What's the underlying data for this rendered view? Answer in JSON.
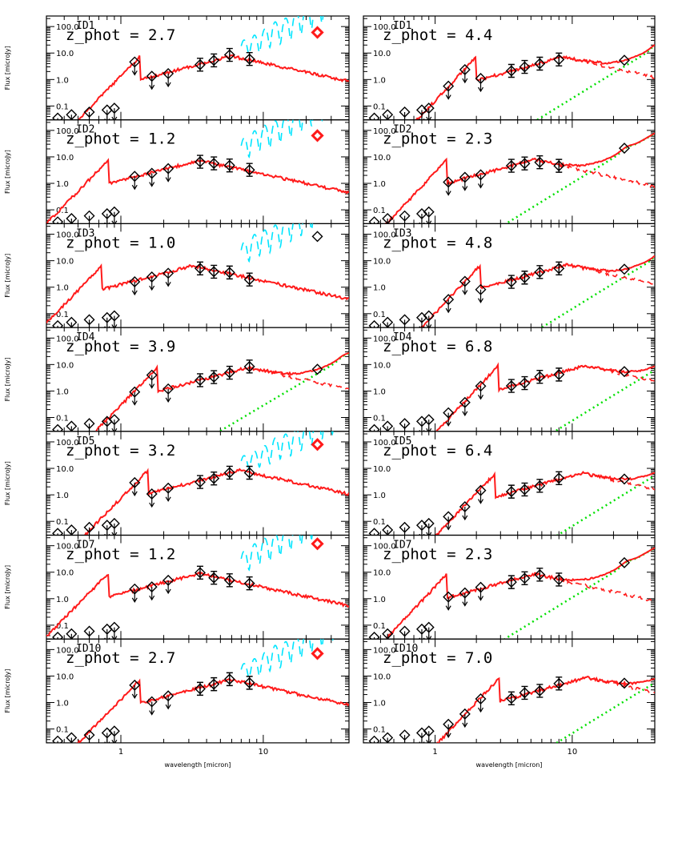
{
  "chart_data": {
    "type": "scatter",
    "layout": {
      "rows": 7,
      "cols": 2
    },
    "xlabel": "wavelength [micron]",
    "ylabel": "Flux [microJy]",
    "x_scale": "log",
    "y_scale": "log",
    "xlim": [
      0.3,
      40
    ],
    "ylim": [
      0.03,
      250
    ],
    "x_ticks": [
      {
        "value": 1,
        "label": "1"
      },
      {
        "value": 10,
        "label": "10"
      }
    ],
    "y_ticks": [
      {
        "value": 100,
        "label": "100.0"
      },
      {
        "value": 10,
        "label": "10.0"
      },
      {
        "value": 1,
        "label": "1.0"
      },
      {
        "value": 0.1,
        "label": "0.1"
      }
    ],
    "colors": {
      "model": "#ff1a1a",
      "pah": "#00e000",
      "alt_model": "#00e5ff",
      "points": "#000000",
      "highlight": "#ff1a1a"
    },
    "panels": [
      {
        "id": "ID1",
        "ztext": "z_phot = 2.7",
        "z": 2.7,
        "col": 0,
        "highlight": 24,
        "cyan": true,
        "green": false
      },
      {
        "id": "ID1",
        "ztext": "z_phot = 4.4",
        "z": 4.4,
        "col": 1,
        "highlight": null,
        "cyan": false,
        "green": true
      },
      {
        "id": "ID2",
        "ztext": "z_phot = 1.2",
        "z": 1.2,
        "col": 0,
        "highlight": 24,
        "cyan": true,
        "green": false
      },
      {
        "id": "ID2",
        "ztext": "z_phot = 2.3",
        "z": 2.3,
        "col": 1,
        "highlight": null,
        "cyan": false,
        "green": true
      },
      {
        "id": "ID3",
        "ztext": "z_phot = 1.0",
        "z": 1.0,
        "col": 0,
        "highlight": null,
        "cyan": true,
        "green": false
      },
      {
        "id": "ID3",
        "ztext": "z_phot = 4.8",
        "z": 4.8,
        "col": 1,
        "highlight": null,
        "cyan": false,
        "green": true
      },
      {
        "id": "ID4",
        "ztext": "z_phot = 3.9",
        "z": 3.9,
        "col": 0,
        "highlight": null,
        "cyan": false,
        "green": true
      },
      {
        "id": "ID4",
        "ztext": "z_phot = 6.8",
        "z": 6.8,
        "col": 1,
        "highlight": null,
        "cyan": false,
        "green": true
      },
      {
        "id": "ID5",
        "ztext": "z_phot = 3.2",
        "z": 3.2,
        "col": 0,
        "highlight": 24,
        "cyan": true,
        "green": false
      },
      {
        "id": "ID5",
        "ztext": "z_phot = 6.4",
        "z": 6.4,
        "col": 1,
        "highlight": null,
        "cyan": false,
        "green": true
      },
      {
        "id": "ID7",
        "ztext": "z_phot = 1.2",
        "z": 1.2,
        "col": 0,
        "highlight": 24,
        "cyan": true,
        "green": false
      },
      {
        "id": "ID7",
        "ztext": "z_phot = 2.3",
        "z": 2.3,
        "col": 1,
        "highlight": null,
        "cyan": false,
        "green": true
      },
      {
        "id": "ID10",
        "ztext": "z_phot = 2.7",
        "z": 2.7,
        "col": 0,
        "highlight": 24,
        "cyan": true,
        "green": false
      },
      {
        "id": "ID10",
        "ztext": "z_phot = 7.0",
        "z": 7.0,
        "col": 1,
        "highlight": null,
        "cyan": false,
        "green": true
      }
    ],
    "photometry_wavelengths": [
      0.36,
      0.45,
      0.6,
      0.8,
      0.9,
      1.25,
      1.65,
      2.15,
      3.6,
      4.5,
      5.8,
      8.0,
      24.0
    ]
  }
}
